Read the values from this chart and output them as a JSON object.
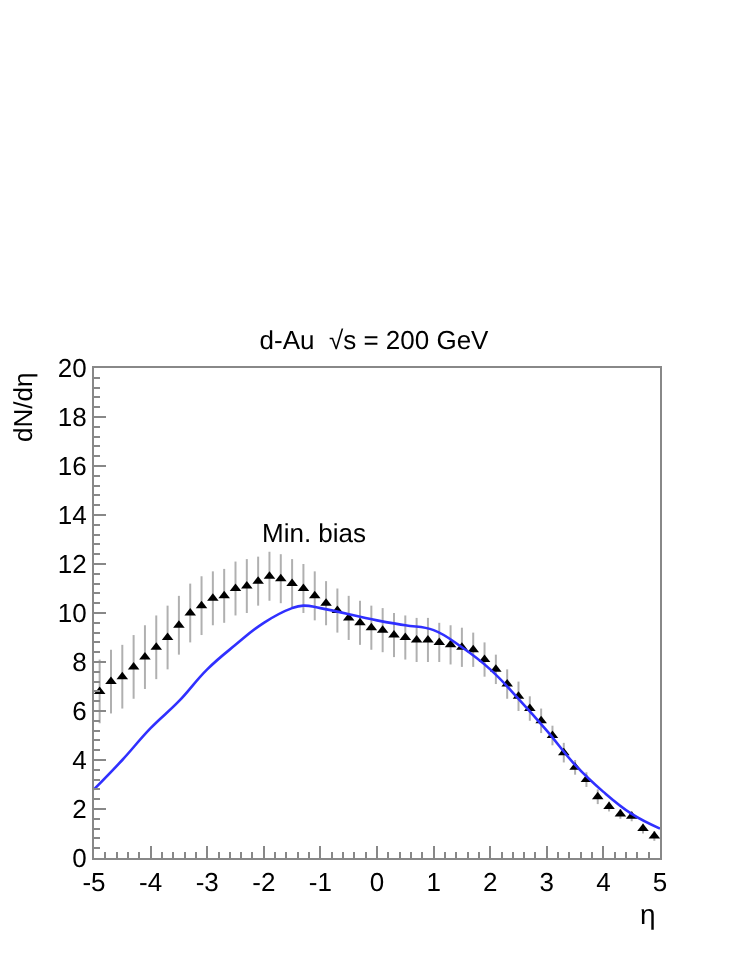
{
  "chart_data": {
    "type": "scatter",
    "title": "d-Au  √s = 200 GeV",
    "xlabel": "η",
    "ylabel": "dN/dη",
    "annotations": [
      "Min. bias"
    ],
    "xlim": [
      -5,
      5
    ],
    "xticks": [
      -5,
      -4,
      -3,
      -2,
      -1,
      0,
      1,
      2,
      3,
      4,
      5
    ],
    "ylim": [
      0,
      20
    ],
    "yticks": [
      0,
      2,
      4,
      6,
      8,
      10,
      12,
      14,
      16,
      18,
      20
    ],
    "grid": false,
    "legend": false,
    "marker": "triangle",
    "series": [
      {
        "color": "#000000",
        "x": [
          -4.9,
          -4.7,
          -4.5,
          -4.3,
          -4.1,
          -3.9,
          -3.7,
          -3.5,
          -3.3,
          -3.1,
          -2.9,
          -2.7,
          -2.5,
          -2.3,
          -2.1,
          -1.9,
          -1.7,
          -1.5,
          -1.3,
          -1.1,
          -0.9,
          -0.7,
          -0.5,
          -0.3,
          -0.1,
          0.1,
          0.3,
          0.5,
          0.7,
          0.9,
          1.1,
          1.3,
          1.5,
          1.7,
          1.9,
          2.1,
          2.3,
          2.5,
          2.7,
          2.9,
          3.1,
          3.3,
          3.5,
          3.7,
          3.9,
          4.1,
          4.3,
          4.5,
          4.7,
          4.9
        ],
        "values": [
          6.8,
          7.2,
          7.4,
          7.8,
          8.2,
          8.6,
          9.0,
          9.5,
          10.0,
          10.3,
          10.6,
          10.7,
          11.0,
          11.1,
          11.3,
          11.5,
          11.4,
          11.2,
          11.0,
          10.7,
          10.4,
          10.1,
          9.8,
          9.6,
          9.4,
          9.3,
          9.1,
          9.0,
          8.9,
          8.9,
          8.8,
          8.7,
          8.6,
          8.5,
          8.1,
          7.7,
          7.1,
          6.6,
          6.1,
          5.6,
          5.0,
          4.3,
          3.7,
          3.2,
          2.5,
          2.1,
          1.8,
          1.7,
          1.2,
          0.9
        ],
        "errors": [
          1.3,
          1.3,
          1.3,
          1.3,
          1.3,
          1.3,
          1.3,
          1.2,
          1.2,
          1.2,
          1.1,
          1.1,
          1.1,
          1.1,
          1.0,
          1.0,
          1.0,
          1.0,
          1.0,
          1.0,
          0.9,
          0.9,
          0.9,
          0.9,
          0.9,
          0.9,
          0.9,
          0.9,
          0.9,
          0.9,
          0.8,
          0.8,
          0.8,
          0.7,
          0.7,
          0.6,
          0.6,
          0.6,
          0.5,
          0.5,
          0.4,
          0.4,
          0.3,
          0.3,
          0.3,
          0.2,
          0.2,
          0.2,
          0.2,
          0.2
        ]
      },
      {
        "type": "line",
        "color": "#3030ff",
        "marker": "none",
        "line_style": "solid",
        "x": [
          -5,
          -4.5,
          -4,
          -3.5,
          -3,
          -2.5,
          -2,
          -1.5,
          -1.3,
          -1,
          0,
          0.5,
          1,
          1.5,
          2,
          2.5,
          3,
          3.5,
          4,
          4.5,
          5
        ],
        "values": [
          2.8,
          4.0,
          5.3,
          6.4,
          7.7,
          8.7,
          9.6,
          10.2,
          10.3,
          10.2,
          9.7,
          9.5,
          9.3,
          8.6,
          7.7,
          6.5,
          5.2,
          3.8,
          2.7,
          1.8,
          1.2
        ]
      }
    ]
  }
}
